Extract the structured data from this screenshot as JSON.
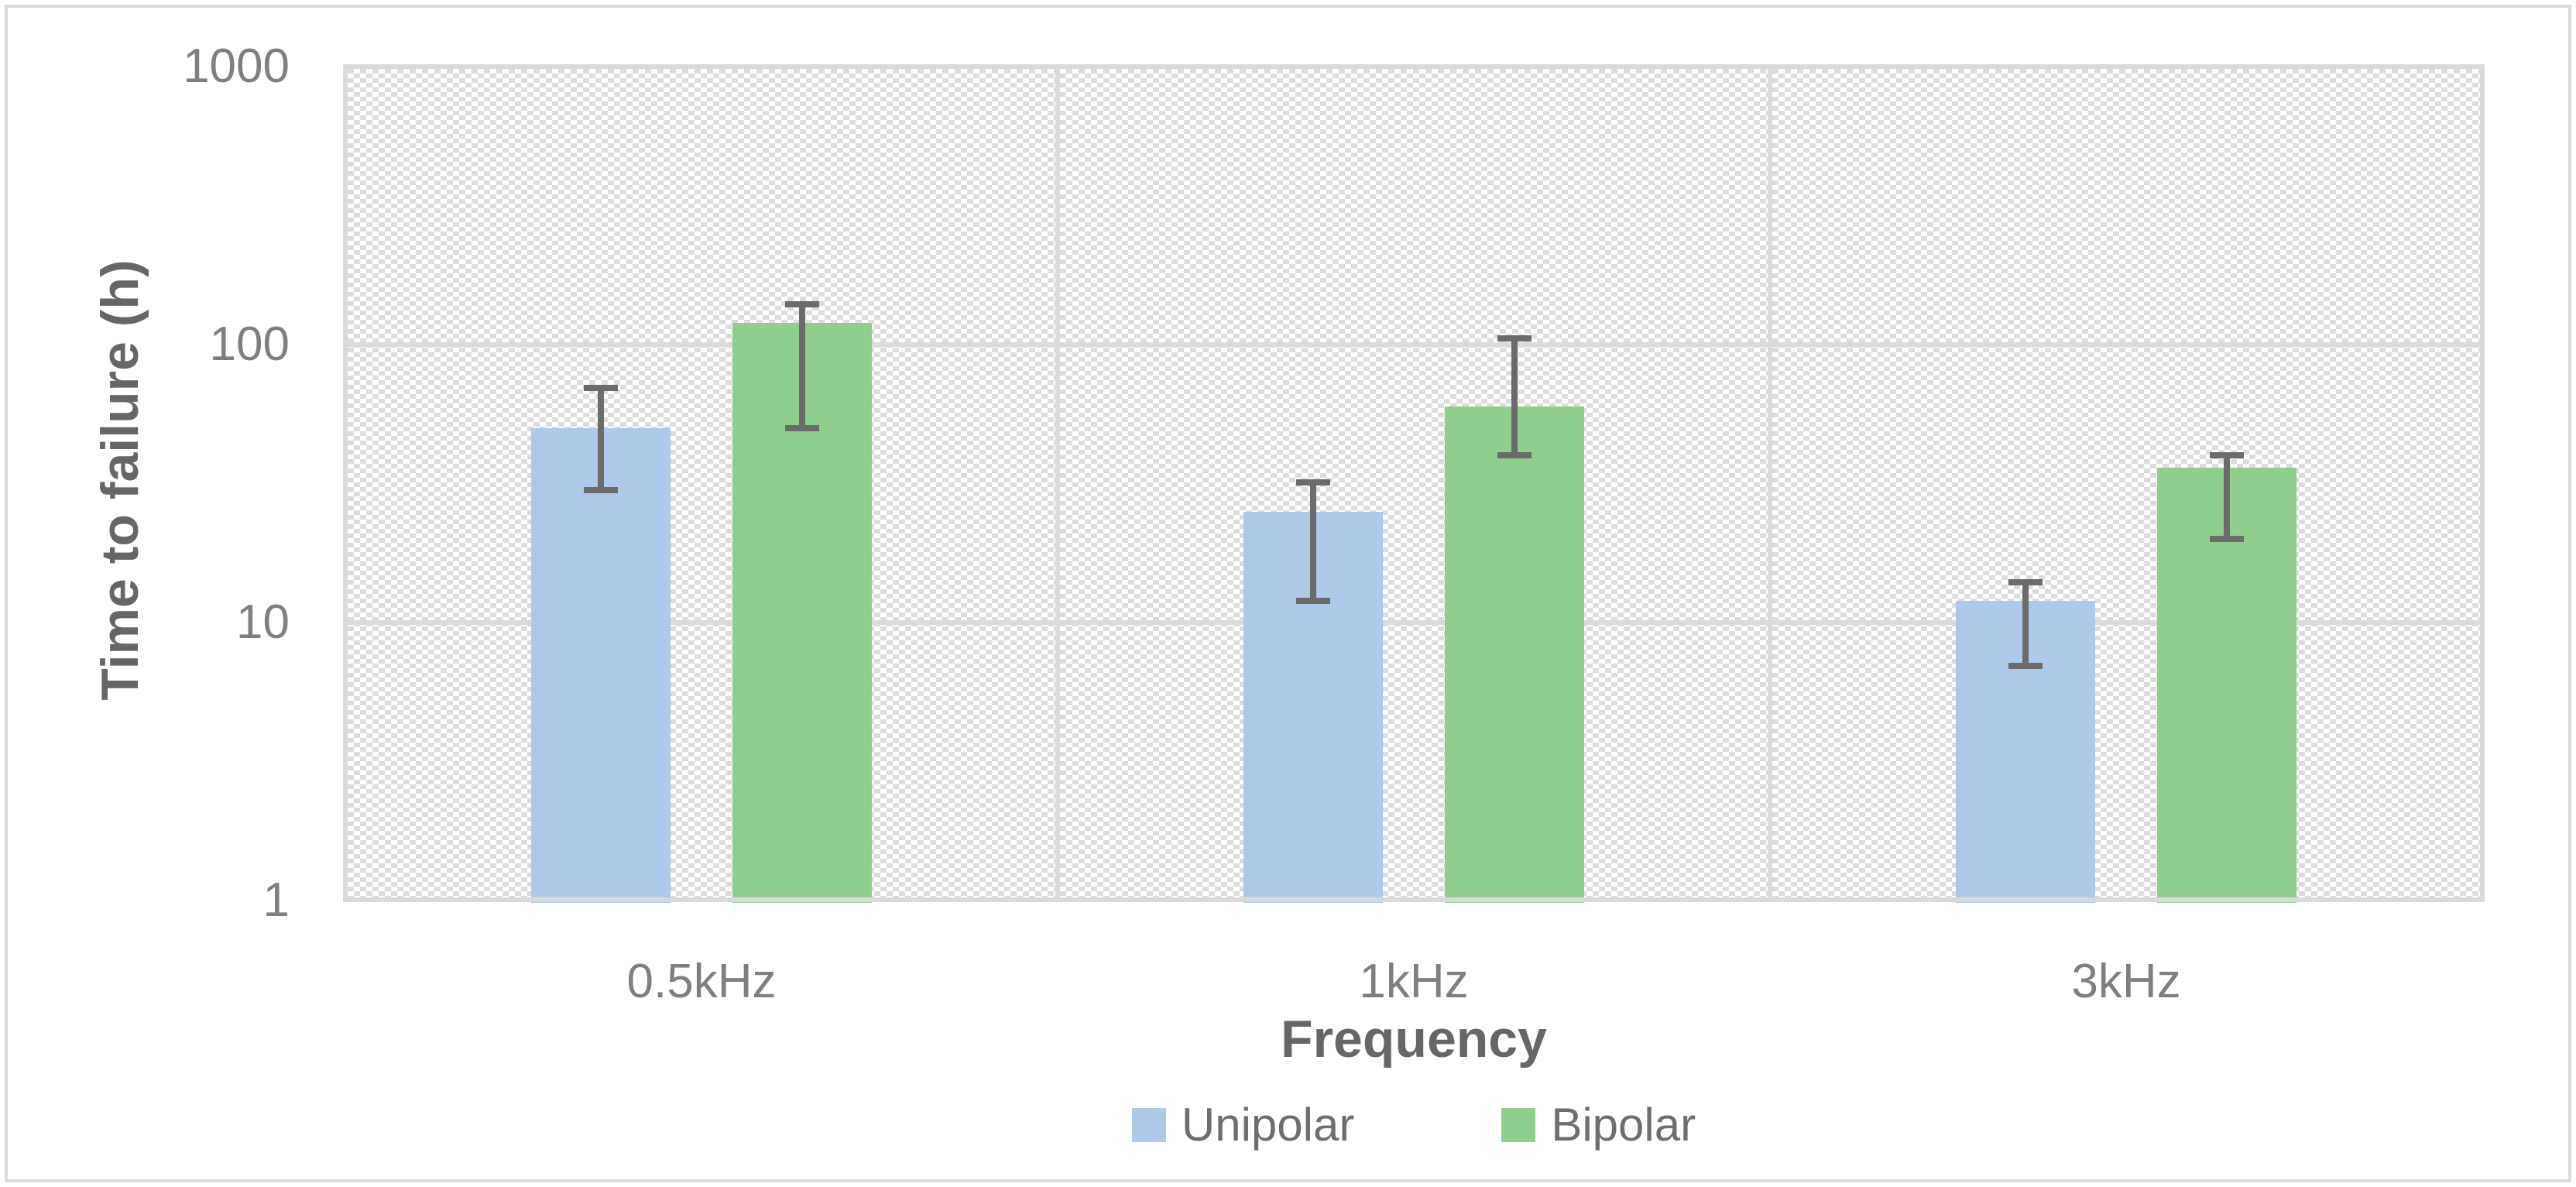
{
  "chart_data": {
    "type": "bar",
    "title": "",
    "categories": [
      "0.5kHz",
      "1kHz",
      "3kHz"
    ],
    "series": [
      {
        "name": "Unipolar",
        "color": "#AEC9E9",
        "values": [
          50,
          25,
          12
        ],
        "error_low": [
          30,
          12,
          7
        ],
        "error_high": [
          70,
          32,
          14
        ]
      },
      {
        "name": "Bipolar",
        "color": "#90CE8D",
        "values": [
          120,
          60,
          36
        ],
        "error_low": [
          50,
          40,
          20
        ],
        "error_high": [
          140,
          105,
          40
        ]
      }
    ],
    "xlabel": "Frequency",
    "ylabel": "Time to failure (h)",
    "yscale": "log",
    "ylim": [
      1,
      1000
    ],
    "yticks": [
      1,
      10,
      100,
      1000
    ],
    "grid": {
      "horizontal": true,
      "vertical_category_separators": true
    },
    "plot_background": "diagonal-dot-hatch",
    "legend_position": "bottom",
    "error_bars": "both-directions-with-caps"
  },
  "colors": {
    "bar_blue": "#AEC9E9",
    "bar_green": "#90CE8D",
    "gridline": "#DADADA",
    "frame": "#D9D9D9",
    "hatch_dot": "#DCDCDC",
    "error_bar": "#6B6B6B",
    "tick_text": "#7F7F7F",
    "axis_title_text": "#666666",
    "background": "#FFFFFF"
  }
}
